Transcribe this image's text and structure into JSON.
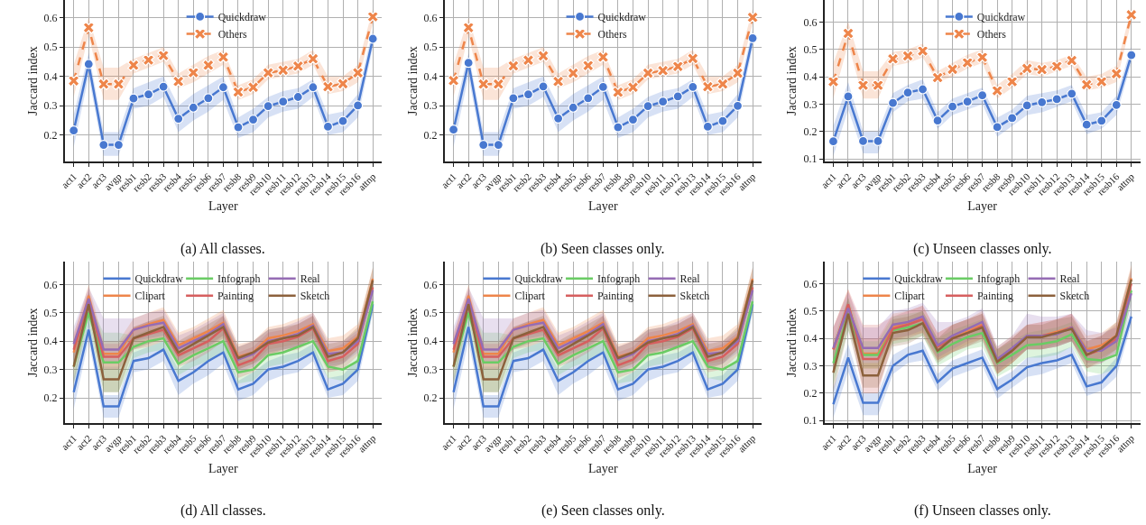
{
  "chart_data": [
    {
      "type": "line",
      "title": "(a) All classes.",
      "xlabel": "Layer",
      "ylabel": "Jaccard index",
      "grid": true,
      "legend": "top",
      "ylim": [
        0.11,
        0.66
      ],
      "yticks": [
        0.2,
        0.3,
        0.4,
        0.5,
        0.6
      ],
      "categories": [
        "act1",
        "act2",
        "act3",
        "avgp",
        "resb1",
        "resb2",
        "resb3",
        "resb4",
        "resb5",
        "resb6",
        "resb7",
        "resb8",
        "resb9",
        "resb10",
        "resb11",
        "resb12",
        "resb13",
        "resb14",
        "resb15",
        "resb16",
        "attnp"
      ],
      "series": [
        {
          "name": "Quickdraw",
          "color": "#4878d0",
          "marker": "circle",
          "line_style": "solid",
          "values": [
            0.216,
            0.442,
            0.167,
            0.167,
            0.325,
            0.339,
            0.365,
            0.256,
            0.294,
            0.326,
            0.363,
            0.227,
            0.253,
            0.299,
            0.314,
            0.33,
            0.363,
            0.229,
            0.248,
            0.301,
            0.528
          ],
          "lower": [
            0.16,
            0.4,
            0.13,
            0.13,
            0.29,
            0.3,
            0.33,
            0.21,
            0.25,
            0.28,
            0.32,
            0.19,
            0.21,
            0.26,
            0.28,
            0.29,
            0.33,
            0.2,
            0.21,
            0.26,
            0.5
          ],
          "upper": [
            0.27,
            0.48,
            0.21,
            0.21,
            0.36,
            0.38,
            0.4,
            0.3,
            0.34,
            0.37,
            0.4,
            0.26,
            0.29,
            0.33,
            0.35,
            0.36,
            0.39,
            0.27,
            0.28,
            0.34,
            0.56
          ]
        },
        {
          "name": "Others",
          "color": "#ee854a",
          "marker": "cross",
          "line_style": "dashed",
          "values": [
            0.385,
            0.566,
            0.374,
            0.374,
            0.438,
            0.456,
            0.471,
            0.383,
            0.413,
            0.438,
            0.466,
            0.347,
            0.363,
            0.412,
            0.421,
            0.435,
            0.46,
            0.365,
            0.375,
            0.412,
            0.603
          ],
          "lower": [
            0.33,
            0.54,
            0.32,
            0.32,
            0.41,
            0.43,
            0.45,
            0.36,
            0.38,
            0.41,
            0.44,
            0.32,
            0.34,
            0.39,
            0.4,
            0.41,
            0.44,
            0.34,
            0.35,
            0.38,
            0.58
          ],
          "upper": [
            0.44,
            0.6,
            0.43,
            0.43,
            0.46,
            0.48,
            0.5,
            0.41,
            0.44,
            0.47,
            0.49,
            0.37,
            0.39,
            0.44,
            0.45,
            0.46,
            0.49,
            0.4,
            0.4,
            0.44,
            0.63
          ]
        }
      ]
    },
    {
      "type": "line",
      "title": "(b) Seen classes only.",
      "xlabel": "Layer",
      "ylabel": "Jaccard index",
      "grid": true,
      "legend": "top",
      "ylim": [
        0.11,
        0.66
      ],
      "yticks": [
        0.2,
        0.3,
        0.4,
        0.5,
        0.6
      ],
      "categories": [
        "act1",
        "act2",
        "act3",
        "avgp",
        "resb1",
        "resb2",
        "resb3",
        "resb4",
        "resb5",
        "resb6",
        "resb7",
        "resb8",
        "resb9",
        "resb10",
        "resb11",
        "resb12",
        "resb13",
        "resb14",
        "resb15",
        "resb16",
        "attnp"
      ],
      "series": [
        {
          "name": "Quickdraw",
          "color": "#4878d0",
          "marker": "circle",
          "line_style": "solid",
          "values": [
            0.219,
            0.446,
            0.167,
            0.167,
            0.326,
            0.339,
            0.366,
            0.257,
            0.294,
            0.326,
            0.364,
            0.227,
            0.253,
            0.299,
            0.314,
            0.332,
            0.364,
            0.229,
            0.248,
            0.3,
            0.53
          ],
          "lower": [
            0.16,
            0.4,
            0.13,
            0.13,
            0.29,
            0.3,
            0.33,
            0.21,
            0.25,
            0.28,
            0.32,
            0.19,
            0.21,
            0.26,
            0.28,
            0.29,
            0.33,
            0.2,
            0.21,
            0.26,
            0.5
          ],
          "upper": [
            0.27,
            0.48,
            0.21,
            0.21,
            0.36,
            0.38,
            0.4,
            0.3,
            0.34,
            0.37,
            0.4,
            0.26,
            0.29,
            0.33,
            0.35,
            0.36,
            0.39,
            0.27,
            0.28,
            0.34,
            0.56
          ]
        },
        {
          "name": "Others",
          "color": "#ee854a",
          "marker": "cross",
          "line_style": "dashed",
          "values": [
            0.386,
            0.566,
            0.374,
            0.374,
            0.436,
            0.455,
            0.47,
            0.383,
            0.411,
            0.437,
            0.466,
            0.346,
            0.363,
            0.411,
            0.42,
            0.434,
            0.461,
            0.365,
            0.374,
            0.411,
            0.601
          ],
          "lower": [
            0.33,
            0.54,
            0.32,
            0.32,
            0.41,
            0.43,
            0.45,
            0.36,
            0.38,
            0.41,
            0.44,
            0.32,
            0.34,
            0.39,
            0.4,
            0.41,
            0.44,
            0.34,
            0.35,
            0.38,
            0.58
          ],
          "upper": [
            0.44,
            0.6,
            0.43,
            0.43,
            0.46,
            0.48,
            0.5,
            0.41,
            0.44,
            0.47,
            0.49,
            0.37,
            0.39,
            0.44,
            0.45,
            0.46,
            0.49,
            0.4,
            0.4,
            0.44,
            0.63
          ]
        }
      ]
    },
    {
      "type": "line",
      "title": "(c) Unseen classes only.",
      "xlabel": "Layer",
      "ylabel": "Jaccard index",
      "grid": true,
      "legend": "top",
      "ylim": [
        0.09,
        0.68
      ],
      "yticks": [
        0.1,
        0.2,
        0.3,
        0.4,
        0.5,
        0.6
      ],
      "categories": [
        "act1",
        "act2",
        "act3",
        "avgp",
        "resb1",
        "resb2",
        "resb3",
        "resb4",
        "resb5",
        "resb6",
        "resb7",
        "resb8",
        "resb9",
        "resb10",
        "resb11",
        "resb12",
        "resb13",
        "resb14",
        "resb15",
        "resb16",
        "attnp"
      ],
      "series": [
        {
          "name": "Quickdraw",
          "color": "#4878d0",
          "marker": "circle",
          "line_style": "solid",
          "values": [
            0.164,
            0.328,
            0.165,
            0.165,
            0.304,
            0.342,
            0.354,
            0.24,
            0.291,
            0.309,
            0.332,
            0.216,
            0.249,
            0.295,
            0.307,
            0.318,
            0.338,
            0.225,
            0.239,
            0.297,
            0.479
          ],
          "lower": [
            0.11,
            0.28,
            0.12,
            0.12,
            0.27,
            0.31,
            0.32,
            0.21,
            0.26,
            0.28,
            0.3,
            0.18,
            0.22,
            0.26,
            0.27,
            0.29,
            0.31,
            0.19,
            0.21,
            0.26,
            0.45
          ],
          "upper": [
            0.22,
            0.38,
            0.2,
            0.2,
            0.34,
            0.37,
            0.39,
            0.27,
            0.32,
            0.34,
            0.36,
            0.25,
            0.28,
            0.33,
            0.34,
            0.35,
            0.37,
            0.26,
            0.27,
            0.33,
            0.51
          ]
        },
        {
          "name": "Others",
          "color": "#ee854a",
          "marker": "cross",
          "line_style": "dashed",
          "values": [
            0.382,
            0.558,
            0.369,
            0.369,
            0.465,
            0.476,
            0.494,
            0.397,
            0.427,
            0.451,
            0.471,
            0.349,
            0.382,
            0.43,
            0.426,
            0.438,
            0.459,
            0.371,
            0.382,
            0.411,
            0.626
          ],
          "lower": [
            0.32,
            0.52,
            0.32,
            0.32,
            0.44,
            0.45,
            0.47,
            0.38,
            0.4,
            0.43,
            0.45,
            0.32,
            0.36,
            0.41,
            0.4,
            0.42,
            0.44,
            0.35,
            0.36,
            0.38,
            0.6
          ],
          "upper": [
            0.45,
            0.6,
            0.42,
            0.42,
            0.49,
            0.5,
            0.52,
            0.42,
            0.45,
            0.48,
            0.5,
            0.37,
            0.41,
            0.46,
            0.45,
            0.46,
            0.48,
            0.4,
            0.41,
            0.44,
            0.65
          ]
        }
      ]
    },
    {
      "type": "line",
      "title": "(d) All classes.",
      "xlabel": "Layer",
      "ylabel": "Jaccard index",
      "grid": true,
      "legend": "top",
      "ylim": [
        0.11,
        0.68
      ],
      "yticks": [
        0.2,
        0.3,
        0.4,
        0.5,
        0.6
      ],
      "categories": [
        "act1",
        "act2",
        "act3",
        "avgp",
        "resb1",
        "resb2",
        "resb3",
        "resb4",
        "resb5",
        "resb6",
        "resb7",
        "resb8",
        "resb9",
        "resb10",
        "resb11",
        "resb12",
        "resb13",
        "resb14",
        "resb15",
        "resb16",
        "attnp"
      ],
      "series": [
        {
          "name": "Quickdraw",
          "color": "#4878d0",
          "values": [
            0.22,
            0.44,
            0.17,
            0.17,
            0.33,
            0.34,
            0.37,
            0.26,
            0.29,
            0.33,
            0.36,
            0.23,
            0.25,
            0.3,
            0.31,
            0.33,
            0.36,
            0.23,
            0.25,
            0.3,
            0.53
          ],
          "lower": [
            0.16,
            0.4,
            0.13,
            0.13,
            0.29,
            0.3,
            0.33,
            0.21,
            0.25,
            0.28,
            0.32,
            0.19,
            0.21,
            0.26,
            0.28,
            0.29,
            0.33,
            0.2,
            0.21,
            0.26,
            0.5
          ],
          "upper": [
            0.27,
            0.48,
            0.21,
            0.21,
            0.36,
            0.38,
            0.4,
            0.3,
            0.34,
            0.37,
            0.4,
            0.26,
            0.29,
            0.33,
            0.35,
            0.36,
            0.39,
            0.27,
            0.28,
            0.34,
            0.56
          ]
        },
        {
          "name": "Clipart",
          "color": "#ee854a",
          "values": [
            0.36,
            0.56,
            0.355,
            0.355,
            0.44,
            0.46,
            0.475,
            0.385,
            0.41,
            0.435,
            0.465,
            0.345,
            0.36,
            0.41,
            0.42,
            0.435,
            0.46,
            0.365,
            0.375,
            0.415,
            0.62
          ],
          "lower": [
            0.3,
            0.52,
            0.31,
            0.31,
            0.4,
            0.42,
            0.43,
            0.34,
            0.37,
            0.39,
            0.42,
            0.3,
            0.32,
            0.37,
            0.38,
            0.39,
            0.42,
            0.32,
            0.33,
            0.37,
            0.58
          ],
          "upper": [
            0.42,
            0.6,
            0.4,
            0.4,
            0.48,
            0.5,
            0.52,
            0.43,
            0.45,
            0.48,
            0.51,
            0.39,
            0.4,
            0.45,
            0.46,
            0.48,
            0.5,
            0.41,
            0.42,
            0.46,
            0.66
          ]
        },
        {
          "name": "Infograph",
          "color": "#6acc64",
          "values": [
            0.31,
            0.5,
            0.325,
            0.325,
            0.38,
            0.4,
            0.41,
            0.32,
            0.35,
            0.375,
            0.4,
            0.29,
            0.3,
            0.35,
            0.36,
            0.38,
            0.4,
            0.31,
            0.3,
            0.33,
            0.54
          ],
          "lower": [
            0.25,
            0.46,
            0.22,
            0.22,
            0.34,
            0.36,
            0.37,
            0.28,
            0.31,
            0.33,
            0.36,
            0.25,
            0.26,
            0.31,
            0.32,
            0.34,
            0.36,
            0.27,
            0.26,
            0.29,
            0.5
          ],
          "upper": [
            0.37,
            0.54,
            0.43,
            0.43,
            0.42,
            0.44,
            0.45,
            0.36,
            0.39,
            0.42,
            0.44,
            0.33,
            0.34,
            0.39,
            0.4,
            0.42,
            0.44,
            0.35,
            0.34,
            0.37,
            0.58
          ]
        },
        {
          "name": "Painting",
          "color": "#d65f5f",
          "values": [
            0.37,
            0.54,
            0.345,
            0.345,
            0.41,
            0.425,
            0.44,
            0.35,
            0.375,
            0.4,
            0.445,
            0.315,
            0.335,
            0.39,
            0.4,
            0.415,
            0.445,
            0.33,
            0.345,
            0.39,
            0.59
          ],
          "lower": [
            0.31,
            0.5,
            0.3,
            0.3,
            0.37,
            0.38,
            0.4,
            0.31,
            0.33,
            0.36,
            0.4,
            0.27,
            0.29,
            0.35,
            0.36,
            0.37,
            0.4,
            0.29,
            0.3,
            0.35,
            0.55
          ],
          "upper": [
            0.43,
            0.58,
            0.39,
            0.39,
            0.45,
            0.47,
            0.48,
            0.39,
            0.42,
            0.44,
            0.49,
            0.36,
            0.38,
            0.43,
            0.44,
            0.46,
            0.49,
            0.37,
            0.39,
            0.43,
            0.63
          ]
        },
        {
          "name": "Real",
          "color": "#956cb4",
          "values": [
            0.39,
            0.55,
            0.37,
            0.37,
            0.44,
            0.455,
            0.465,
            0.375,
            0.4,
            0.425,
            0.46,
            0.335,
            0.355,
            0.4,
            0.41,
            0.425,
            0.455,
            0.355,
            0.36,
            0.4,
            0.58
          ],
          "lower": [
            0.33,
            0.51,
            0.32,
            0.32,
            0.4,
            0.41,
            0.42,
            0.33,
            0.36,
            0.38,
            0.42,
            0.29,
            0.31,
            0.36,
            0.37,
            0.38,
            0.41,
            0.31,
            0.32,
            0.36,
            0.54
          ],
          "upper": [
            0.45,
            0.59,
            0.48,
            0.48,
            0.48,
            0.5,
            0.51,
            0.42,
            0.44,
            0.47,
            0.5,
            0.38,
            0.4,
            0.44,
            0.45,
            0.47,
            0.5,
            0.4,
            0.4,
            0.44,
            0.62
          ]
        },
        {
          "name": "Sketch",
          "color": "#8c613c",
          "values": [
            0.31,
            0.53,
            0.265,
            0.265,
            0.41,
            0.43,
            0.45,
            0.36,
            0.39,
            0.42,
            0.45,
            0.34,
            0.36,
            0.395,
            0.41,
            0.42,
            0.45,
            0.345,
            0.36,
            0.41,
            0.615
          ],
          "lower": [
            0.25,
            0.49,
            0.22,
            0.22,
            0.37,
            0.39,
            0.41,
            0.32,
            0.35,
            0.38,
            0.41,
            0.3,
            0.32,
            0.35,
            0.37,
            0.38,
            0.41,
            0.3,
            0.32,
            0.37,
            0.57
          ],
          "upper": [
            0.37,
            0.57,
            0.31,
            0.31,
            0.45,
            0.47,
            0.49,
            0.4,
            0.43,
            0.46,
            0.49,
            0.38,
            0.4,
            0.44,
            0.45,
            0.46,
            0.49,
            0.39,
            0.4,
            0.45,
            0.66
          ]
        }
      ]
    },
    {
      "type": "line",
      "title": "(e) Seen classes only.",
      "xlabel": "Layer",
      "ylabel": "Jaccard index",
      "grid": true,
      "legend": "top",
      "ylim": [
        0.11,
        0.68
      ],
      "yticks": [
        0.2,
        0.3,
        0.4,
        0.5,
        0.6
      ],
      "categories": [
        "act1",
        "act2",
        "act3",
        "avgp",
        "resb1",
        "resb2",
        "resb3",
        "resb4",
        "resb5",
        "resb6",
        "resb7",
        "resb8",
        "resb9",
        "resb10",
        "resb11",
        "resb12",
        "resb13",
        "resb14",
        "resb15",
        "resb16",
        "attnp"
      ],
      "series": [
        {
          "name": "Quickdraw",
          "color": "#4878d0",
          "values": [
            0.22,
            0.45,
            0.17,
            0.17,
            0.33,
            0.34,
            0.37,
            0.26,
            0.29,
            0.33,
            0.36,
            0.23,
            0.25,
            0.3,
            0.31,
            0.33,
            0.36,
            0.23,
            0.25,
            0.3,
            0.53
          ],
          "lower": [
            0.16,
            0.4,
            0.13,
            0.13,
            0.29,
            0.3,
            0.33,
            0.21,
            0.25,
            0.28,
            0.32,
            0.19,
            0.21,
            0.26,
            0.28,
            0.29,
            0.33,
            0.2,
            0.21,
            0.26,
            0.5
          ],
          "upper": [
            0.27,
            0.48,
            0.21,
            0.21,
            0.36,
            0.38,
            0.4,
            0.3,
            0.34,
            0.37,
            0.4,
            0.26,
            0.29,
            0.33,
            0.35,
            0.36,
            0.39,
            0.27,
            0.28,
            0.34,
            0.56
          ]
        },
        {
          "name": "Clipart",
          "color": "#ee854a",
          "values": [
            0.36,
            0.56,
            0.355,
            0.355,
            0.44,
            0.46,
            0.475,
            0.385,
            0.41,
            0.435,
            0.465,
            0.345,
            0.36,
            0.41,
            0.42,
            0.435,
            0.46,
            0.365,
            0.375,
            0.415,
            0.62
          ],
          "lower": [
            0.3,
            0.52,
            0.31,
            0.31,
            0.4,
            0.42,
            0.43,
            0.34,
            0.37,
            0.39,
            0.42,
            0.3,
            0.32,
            0.37,
            0.38,
            0.39,
            0.42,
            0.32,
            0.33,
            0.37,
            0.58
          ],
          "upper": [
            0.42,
            0.6,
            0.4,
            0.4,
            0.48,
            0.5,
            0.52,
            0.43,
            0.45,
            0.48,
            0.51,
            0.39,
            0.4,
            0.45,
            0.46,
            0.48,
            0.5,
            0.41,
            0.42,
            0.46,
            0.66
          ]
        },
        {
          "name": "Infograph",
          "color": "#6acc64",
          "values": [
            0.31,
            0.5,
            0.325,
            0.325,
            0.38,
            0.4,
            0.41,
            0.32,
            0.35,
            0.375,
            0.4,
            0.29,
            0.3,
            0.35,
            0.36,
            0.38,
            0.4,
            0.31,
            0.3,
            0.33,
            0.54
          ],
          "lower": [
            0.25,
            0.46,
            0.22,
            0.22,
            0.34,
            0.36,
            0.37,
            0.28,
            0.31,
            0.33,
            0.36,
            0.25,
            0.26,
            0.31,
            0.32,
            0.34,
            0.36,
            0.27,
            0.26,
            0.29,
            0.5
          ],
          "upper": [
            0.37,
            0.54,
            0.43,
            0.43,
            0.42,
            0.44,
            0.45,
            0.36,
            0.39,
            0.42,
            0.44,
            0.33,
            0.34,
            0.39,
            0.4,
            0.42,
            0.44,
            0.35,
            0.34,
            0.37,
            0.58
          ]
        },
        {
          "name": "Painting",
          "color": "#d65f5f",
          "values": [
            0.37,
            0.54,
            0.345,
            0.345,
            0.41,
            0.425,
            0.44,
            0.35,
            0.375,
            0.4,
            0.445,
            0.315,
            0.335,
            0.39,
            0.4,
            0.415,
            0.445,
            0.33,
            0.345,
            0.39,
            0.59
          ],
          "lower": [
            0.31,
            0.5,
            0.3,
            0.3,
            0.37,
            0.38,
            0.4,
            0.31,
            0.33,
            0.36,
            0.4,
            0.27,
            0.29,
            0.35,
            0.36,
            0.37,
            0.4,
            0.29,
            0.3,
            0.35,
            0.55
          ],
          "upper": [
            0.43,
            0.58,
            0.39,
            0.39,
            0.45,
            0.47,
            0.48,
            0.39,
            0.42,
            0.44,
            0.49,
            0.36,
            0.38,
            0.43,
            0.44,
            0.46,
            0.49,
            0.37,
            0.39,
            0.43,
            0.63
          ]
        },
        {
          "name": "Real",
          "color": "#956cb4",
          "values": [
            0.39,
            0.55,
            0.37,
            0.37,
            0.44,
            0.455,
            0.465,
            0.375,
            0.4,
            0.425,
            0.46,
            0.335,
            0.355,
            0.4,
            0.41,
            0.425,
            0.455,
            0.355,
            0.36,
            0.4,
            0.58
          ],
          "lower": [
            0.33,
            0.51,
            0.32,
            0.32,
            0.4,
            0.41,
            0.42,
            0.33,
            0.36,
            0.38,
            0.42,
            0.29,
            0.31,
            0.36,
            0.37,
            0.38,
            0.41,
            0.31,
            0.32,
            0.36,
            0.54
          ],
          "upper": [
            0.45,
            0.59,
            0.48,
            0.48,
            0.48,
            0.5,
            0.51,
            0.42,
            0.44,
            0.47,
            0.5,
            0.38,
            0.4,
            0.44,
            0.45,
            0.47,
            0.5,
            0.4,
            0.4,
            0.44,
            0.62
          ]
        },
        {
          "name": "Sketch",
          "color": "#8c613c",
          "values": [
            0.31,
            0.53,
            0.265,
            0.265,
            0.41,
            0.43,
            0.45,
            0.36,
            0.39,
            0.42,
            0.45,
            0.34,
            0.36,
            0.395,
            0.41,
            0.42,
            0.45,
            0.345,
            0.36,
            0.41,
            0.615
          ],
          "lower": [
            0.25,
            0.49,
            0.22,
            0.22,
            0.37,
            0.39,
            0.41,
            0.32,
            0.35,
            0.38,
            0.41,
            0.3,
            0.32,
            0.35,
            0.37,
            0.38,
            0.41,
            0.3,
            0.32,
            0.37,
            0.57
          ],
          "upper": [
            0.37,
            0.57,
            0.31,
            0.31,
            0.45,
            0.47,
            0.49,
            0.4,
            0.43,
            0.46,
            0.49,
            0.38,
            0.4,
            0.44,
            0.45,
            0.46,
            0.49,
            0.39,
            0.4,
            0.45,
            0.66
          ]
        }
      ]
    },
    {
      "type": "line",
      "title": "(f) Unseen classes only.",
      "xlabel": "Layer",
      "ylabel": "Jaccard index",
      "grid": true,
      "legend": "top",
      "ylim": [
        0.09,
        0.68
      ],
      "yticks": [
        0.1,
        0.2,
        0.3,
        0.4,
        0.5,
        0.6
      ],
      "categories": [
        "act1",
        "act2",
        "act3",
        "avgp",
        "resb1",
        "resb2",
        "resb3",
        "resb4",
        "resb5",
        "resb6",
        "resb7",
        "resb8",
        "resb9",
        "resb10",
        "resb11",
        "resb12",
        "resb13",
        "resb14",
        "resb15",
        "resb16",
        "attnp"
      ],
      "series": [
        {
          "name": "Quickdraw",
          "color": "#4878d0",
          "values": [
            0.16,
            0.33,
            0.165,
            0.165,
            0.3,
            0.34,
            0.355,
            0.24,
            0.29,
            0.31,
            0.33,
            0.215,
            0.25,
            0.295,
            0.31,
            0.32,
            0.34,
            0.225,
            0.24,
            0.3,
            0.48
          ],
          "lower": [
            0.11,
            0.28,
            0.12,
            0.12,
            0.27,
            0.31,
            0.32,
            0.21,
            0.26,
            0.28,
            0.3,
            0.18,
            0.22,
            0.26,
            0.27,
            0.29,
            0.31,
            0.19,
            0.21,
            0.26,
            0.45
          ],
          "upper": [
            0.22,
            0.38,
            0.2,
            0.2,
            0.34,
            0.37,
            0.39,
            0.27,
            0.32,
            0.34,
            0.36,
            0.25,
            0.28,
            0.33,
            0.34,
            0.35,
            0.37,
            0.26,
            0.27,
            0.33,
            0.51
          ]
        },
        {
          "name": "Clipart",
          "color": "#ee854a",
          "values": [
            0.36,
            0.52,
            0.345,
            0.345,
            0.44,
            0.455,
            0.47,
            0.37,
            0.4,
            0.425,
            0.45,
            0.32,
            0.36,
            0.405,
            0.41,
            0.425,
            0.44,
            0.36,
            0.375,
            0.41,
            0.62
          ],
          "lower": [
            0.28,
            0.46,
            0.29,
            0.29,
            0.39,
            0.41,
            0.42,
            0.32,
            0.35,
            0.38,
            0.4,
            0.27,
            0.31,
            0.36,
            0.36,
            0.38,
            0.39,
            0.31,
            0.33,
            0.36,
            0.57
          ],
          "upper": [
            0.44,
            0.58,
            0.4,
            0.4,
            0.49,
            0.5,
            0.52,
            0.42,
            0.45,
            0.47,
            0.5,
            0.37,
            0.41,
            0.45,
            0.46,
            0.47,
            0.49,
            0.41,
            0.42,
            0.46,
            0.67
          ]
        },
        {
          "name": "Infograph",
          "color": "#6acc64",
          "values": [
            0.31,
            0.49,
            0.34,
            0.34,
            0.43,
            0.44,
            0.455,
            0.35,
            0.38,
            0.405,
            0.42,
            0.31,
            0.34,
            0.375,
            0.38,
            0.39,
            0.415,
            0.325,
            0.32,
            0.34,
            0.575
          ],
          "lower": [
            0.23,
            0.43,
            0.29,
            0.29,
            0.38,
            0.39,
            0.41,
            0.3,
            0.33,
            0.36,
            0.37,
            0.26,
            0.29,
            0.33,
            0.33,
            0.34,
            0.37,
            0.28,
            0.27,
            0.29,
            0.53
          ],
          "upper": [
            0.39,
            0.55,
            0.39,
            0.39,
            0.48,
            0.49,
            0.5,
            0.4,
            0.43,
            0.45,
            0.47,
            0.36,
            0.39,
            0.42,
            0.43,
            0.44,
            0.46,
            0.37,
            0.37,
            0.39,
            0.62
          ]
        },
        {
          "name": "Painting",
          "color": "#d65f5f",
          "values": [
            0.36,
            0.525,
            0.325,
            0.325,
            0.435,
            0.45,
            0.47,
            0.37,
            0.4,
            0.42,
            0.445,
            0.315,
            0.355,
            0.405,
            0.41,
            0.42,
            0.44,
            0.34,
            0.36,
            0.4,
            0.6
          ],
          "lower": [
            0.28,
            0.47,
            0.2,
            0.2,
            0.39,
            0.4,
            0.42,
            0.32,
            0.35,
            0.37,
            0.4,
            0.27,
            0.31,
            0.36,
            0.36,
            0.37,
            0.39,
            0.29,
            0.31,
            0.35,
            0.55
          ],
          "upper": [
            0.44,
            0.58,
            0.45,
            0.45,
            0.48,
            0.5,
            0.52,
            0.42,
            0.45,
            0.47,
            0.49,
            0.36,
            0.4,
            0.45,
            0.46,
            0.47,
            0.49,
            0.39,
            0.41,
            0.45,
            0.65
          ]
        },
        {
          "name": "Real",
          "color": "#956cb4",
          "values": [
            0.365,
            0.51,
            0.365,
            0.365,
            0.45,
            0.46,
            0.48,
            0.375,
            0.41,
            0.435,
            0.46,
            0.325,
            0.365,
            0.41,
            0.41,
            0.415,
            0.44,
            0.355,
            0.355,
            0.39,
            0.565
          ],
          "lower": [
            0.29,
            0.45,
            0.31,
            0.31,
            0.4,
            0.41,
            0.43,
            0.33,
            0.36,
            0.39,
            0.41,
            0.28,
            0.32,
            0.36,
            0.36,
            0.37,
            0.39,
            0.31,
            0.31,
            0.34,
            0.52
          ],
          "upper": [
            0.44,
            0.57,
            0.44,
            0.44,
            0.5,
            0.51,
            0.53,
            0.46,
            0.46,
            0.48,
            0.51,
            0.37,
            0.41,
            0.49,
            0.48,
            0.48,
            0.49,
            0.43,
            0.42,
            0.44,
            0.61
          ]
        },
        {
          "name": "Sketch",
          "color": "#8c613c",
          "values": [
            0.275,
            0.49,
            0.265,
            0.265,
            0.42,
            0.43,
            0.455,
            0.355,
            0.4,
            0.42,
            0.44,
            0.315,
            0.355,
            0.405,
            0.405,
            0.42,
            0.435,
            0.34,
            0.365,
            0.41,
            0.615
          ],
          "lower": [
            0.2,
            0.43,
            0.22,
            0.22,
            0.37,
            0.38,
            0.41,
            0.31,
            0.35,
            0.37,
            0.39,
            0.27,
            0.31,
            0.36,
            0.36,
            0.37,
            0.39,
            0.29,
            0.32,
            0.36,
            0.57
          ],
          "upper": [
            0.35,
            0.55,
            0.31,
            0.31,
            0.47,
            0.48,
            0.5,
            0.4,
            0.45,
            0.47,
            0.49,
            0.36,
            0.4,
            0.45,
            0.45,
            0.47,
            0.48,
            0.39,
            0.41,
            0.46,
            0.66
          ]
        }
      ]
    }
  ]
}
